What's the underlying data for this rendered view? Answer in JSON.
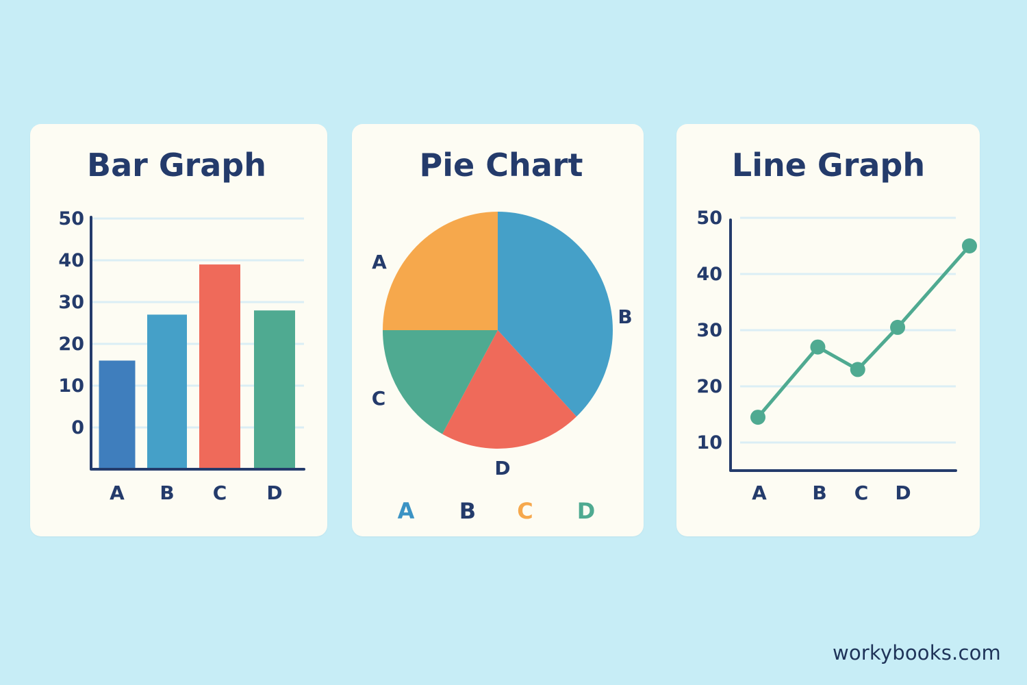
{
  "colors": {
    "background": "#c7edf6",
    "card": "#fdfcf3",
    "ink": "#243b6b",
    "grid": "#dbeef5",
    "dark_blue": "#3f7ebd",
    "blue": "#45a0c8",
    "red": "#ef6a5a",
    "green": "#4faa91",
    "orange": "#f6a84c"
  },
  "chart_data": [
    {
      "type": "bar",
      "title": "Bar Graph",
      "categories": [
        "A",
        "B",
        "C",
        "D"
      ],
      "values": [
        16,
        27,
        39,
        28
      ],
      "bar_colors": [
        "#3f7ebd",
        "#45a0c8",
        "#ef6a5a",
        "#4faa91"
      ],
      "y_ticks": [
        "0",
        "10",
        "20",
        "30",
        "40",
        "50"
      ],
      "ylim": [
        -10,
        50
      ],
      "grid": true
    },
    {
      "type": "pie",
      "title": "Pie Chart",
      "slices": [
        {
          "label": "A",
          "value": 25,
          "color": "#f6a84c"
        },
        {
          "label": "B",
          "value": 38,
          "color": "#45a0c8"
        },
        {
          "label": "C",
          "value": 17,
          "color": "#4faa91"
        },
        {
          "label": "D",
          "value": 20,
          "color": "#ef6a5a"
        }
      ],
      "legend": [
        {
          "label": "A",
          "color": "#3b93c4"
        },
        {
          "label": "B",
          "color": "#243b6b"
        },
        {
          "label": "C",
          "color": "#f6a84c"
        },
        {
          "label": "D",
          "color": "#4faa91"
        }
      ],
      "legend_position": "bottom"
    },
    {
      "type": "line",
      "title": "Line Graph",
      "categories": [
        "A",
        "B",
        "C",
        "D"
      ],
      "y_ticks": [
        "10",
        "20",
        "30",
        "40",
        "50"
      ],
      "ylim": [
        5,
        50
      ],
      "series": [
        {
          "color": "#4faa91",
          "points": [
            {
              "x": 0,
              "y": 14.5
            },
            {
              "x": 1.5,
              "y": 27
            },
            {
              "x": 2.5,
              "y": 23
            },
            {
              "x": 3.5,
              "y": 30.5
            },
            {
              "x": 5.3,
              "y": 45
            }
          ]
        }
      ],
      "grid": true
    }
  ],
  "watermark": "workybooks.com"
}
